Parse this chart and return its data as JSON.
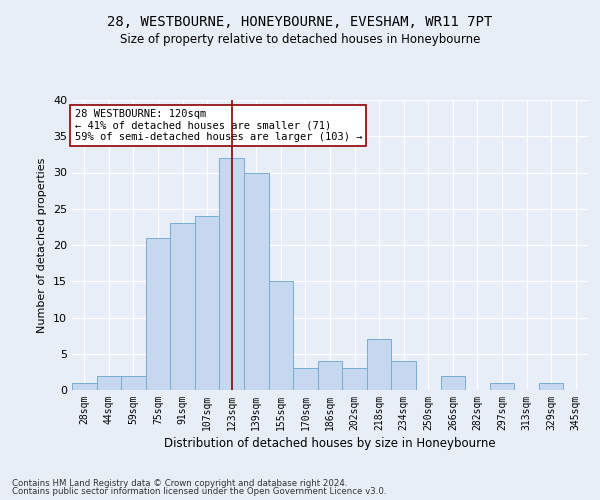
{
  "title_line1": "28, WESTBOURNE, HONEYBOURNE, EVESHAM, WR11 7PT",
  "title_line2": "Size of property relative to detached houses in Honeybourne",
  "xlabel": "Distribution of detached houses by size in Honeybourne",
  "ylabel": "Number of detached properties",
  "categories": [
    "28sqm",
    "44sqm",
    "59sqm",
    "75sqm",
    "91sqm",
    "107sqm",
    "123sqm",
    "139sqm",
    "155sqm",
    "170sqm",
    "186sqm",
    "202sqm",
    "218sqm",
    "234sqm",
    "250sqm",
    "266sqm",
    "282sqm",
    "297sqm",
    "313sqm",
    "329sqm",
    "345sqm"
  ],
  "values": [
    1,
    2,
    2,
    21,
    23,
    24,
    32,
    30,
    15,
    3,
    4,
    3,
    7,
    4,
    0,
    2,
    0,
    1,
    0,
    1,
    0
  ],
  "bar_color": "#c5d8f0",
  "bar_edge_color": "#7aadd4",
  "annotation_line1": "28 WESTBOURNE: 120sqm",
  "annotation_line2": "← 41% of detached houses are smaller (71)",
  "annotation_line3": "59% of semi-detached houses are larger (103) →",
  "annotation_box_color": "white",
  "annotation_box_edge": "darkred",
  "vline_x_idx": 6,
  "vline_color": "darkred",
  "ylim": [
    0,
    40
  ],
  "yticks": [
    0,
    5,
    10,
    15,
    20,
    25,
    30,
    35,
    40
  ],
  "footer_line1": "Contains HM Land Registry data © Crown copyright and database right 2024.",
  "footer_line2": "Contains public sector information licensed under the Open Government Licence v3.0.",
  "background_color": "#e8eef8",
  "plot_background_color": "#e8eef8"
}
